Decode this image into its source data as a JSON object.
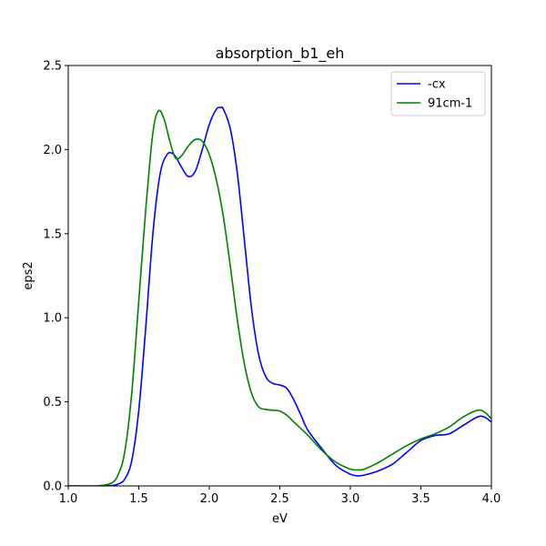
{
  "chart_data": {
    "type": "line",
    "title": "absorption_b1_eh",
    "xlabel": "eV",
    "ylabel": "eps2",
    "xlim": [
      1.0,
      4.0
    ],
    "ylim": [
      0.0,
      2.5
    ],
    "xticks": [
      "1.0",
      "1.5",
      "2.0",
      "2.5",
      "3.0",
      "3.5",
      "4.0"
    ],
    "yticks": [
      "0.0",
      "0.5",
      "1.0",
      "1.5",
      "2.0",
      "2.5"
    ],
    "grid": false,
    "legend_position": "top-right",
    "series": [
      {
        "name": "-cx",
        "color": "#0000ff",
        "x": [
          1.0,
          1.2,
          1.3,
          1.35,
          1.4,
          1.45,
          1.5,
          1.55,
          1.6,
          1.65,
          1.7,
          1.75,
          1.8,
          1.85,
          1.9,
          1.95,
          2.0,
          2.05,
          2.08,
          2.1,
          2.15,
          2.2,
          2.25,
          2.3,
          2.35,
          2.4,
          2.45,
          2.5,
          2.55,
          2.6,
          2.65,
          2.7,
          2.8,
          2.9,
          3.0,
          3.05,
          3.1,
          3.2,
          3.3,
          3.4,
          3.5,
          3.6,
          3.7,
          3.8,
          3.9,
          3.95,
          4.0
        ],
        "y": [
          0.0,
          0.0,
          0.002,
          0.01,
          0.04,
          0.15,
          0.45,
          0.95,
          1.5,
          1.85,
          1.97,
          1.97,
          1.9,
          1.84,
          1.87,
          2.0,
          2.15,
          2.24,
          2.25,
          2.24,
          2.12,
          1.85,
          1.45,
          1.05,
          0.78,
          0.65,
          0.61,
          0.6,
          0.58,
          0.51,
          0.42,
          0.33,
          0.22,
          0.12,
          0.07,
          0.06,
          0.065,
          0.09,
          0.13,
          0.2,
          0.27,
          0.3,
          0.31,
          0.36,
          0.41,
          0.41,
          0.38
        ]
      },
      {
        "name": "91cm-1",
        "color": "#008000",
        "x": [
          1.0,
          1.2,
          1.3,
          1.35,
          1.4,
          1.45,
          1.5,
          1.55,
          1.6,
          1.64,
          1.68,
          1.72,
          1.76,
          1.8,
          1.85,
          1.9,
          1.95,
          2.0,
          2.05,
          2.1,
          2.15,
          2.2,
          2.25,
          2.3,
          2.35,
          2.4,
          2.45,
          2.5,
          2.55,
          2.6,
          2.7,
          2.8,
          2.9,
          3.0,
          3.05,
          3.1,
          3.2,
          3.3,
          3.4,
          3.5,
          3.6,
          3.7,
          3.8,
          3.9,
          3.95,
          4.0
        ],
        "y": [
          0.0,
          0.0,
          0.015,
          0.06,
          0.2,
          0.55,
          1.1,
          1.65,
          2.1,
          2.23,
          2.18,
          2.05,
          1.95,
          1.96,
          2.02,
          2.06,
          2.05,
          1.97,
          1.82,
          1.6,
          1.3,
          0.98,
          0.72,
          0.55,
          0.47,
          0.455,
          0.45,
          0.445,
          0.42,
          0.38,
          0.3,
          0.21,
          0.14,
          0.1,
          0.095,
          0.1,
          0.14,
          0.19,
          0.24,
          0.28,
          0.31,
          0.35,
          0.41,
          0.45,
          0.44,
          0.4
        ]
      }
    ]
  }
}
